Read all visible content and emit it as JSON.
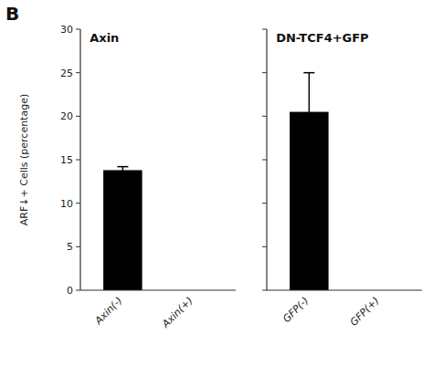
{
  "chart_data": [
    {
      "type": "bar",
      "title": "Axin",
      "annotations": [
        "B"
      ],
      "categories": [
        "Axin(-)",
        "Axin(+)"
      ],
      "values": [
        13.8,
        0
      ],
      "errors": [
        0.4,
        0
      ],
      "color": "#000000",
      "ylabel": "ARF↓+ Cells (percentage)",
      "ylim": [
        0,
        30
      ],
      "yticks": [
        0,
        5,
        10,
        15,
        20,
        25,
        30
      ],
      "grid": false
    },
    {
      "type": "bar",
      "title": "DN-TCF4+GFP",
      "categories": [
        "GFP(-)",
        "GFP(+)"
      ],
      "values": [
        20.5,
        0
      ],
      "errors": [
        4.5,
        0
      ],
      "color": "#000000",
      "ylim": [
        0,
        30
      ],
      "yticks": [
        0,
        5,
        10,
        15,
        20,
        25,
        30
      ],
      "grid": false,
      "tick_labels": "x"
    }
  ]
}
